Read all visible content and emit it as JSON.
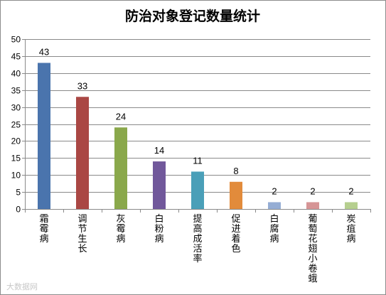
{
  "chart_data": {
    "type": "bar",
    "title": "防治对象登记数量统计",
    "categories": [
      "霜霉病",
      "调节生长",
      "灰霉病",
      "白粉病",
      "提高成活率",
      "促进着色",
      "白腐病",
      "葡萄花翅小卷蛾",
      "炭疽病"
    ],
    "values": [
      43,
      33,
      24,
      14,
      11,
      8,
      2,
      2,
      2
    ],
    "colors": [
      "#4a74ad",
      "#aa4744",
      "#8aa84b",
      "#71589b",
      "#4a9fb8",
      "#e28b3b",
      "#95add4",
      "#d69596",
      "#b6cf8f"
    ],
    "ylim": [
      0,
      50
    ],
    "yticks": [
      0,
      5,
      10,
      15,
      20,
      25,
      30,
      35,
      40,
      45,
      50
    ],
    "grid": true,
    "legend": "none"
  },
  "watermark": "大数据网"
}
